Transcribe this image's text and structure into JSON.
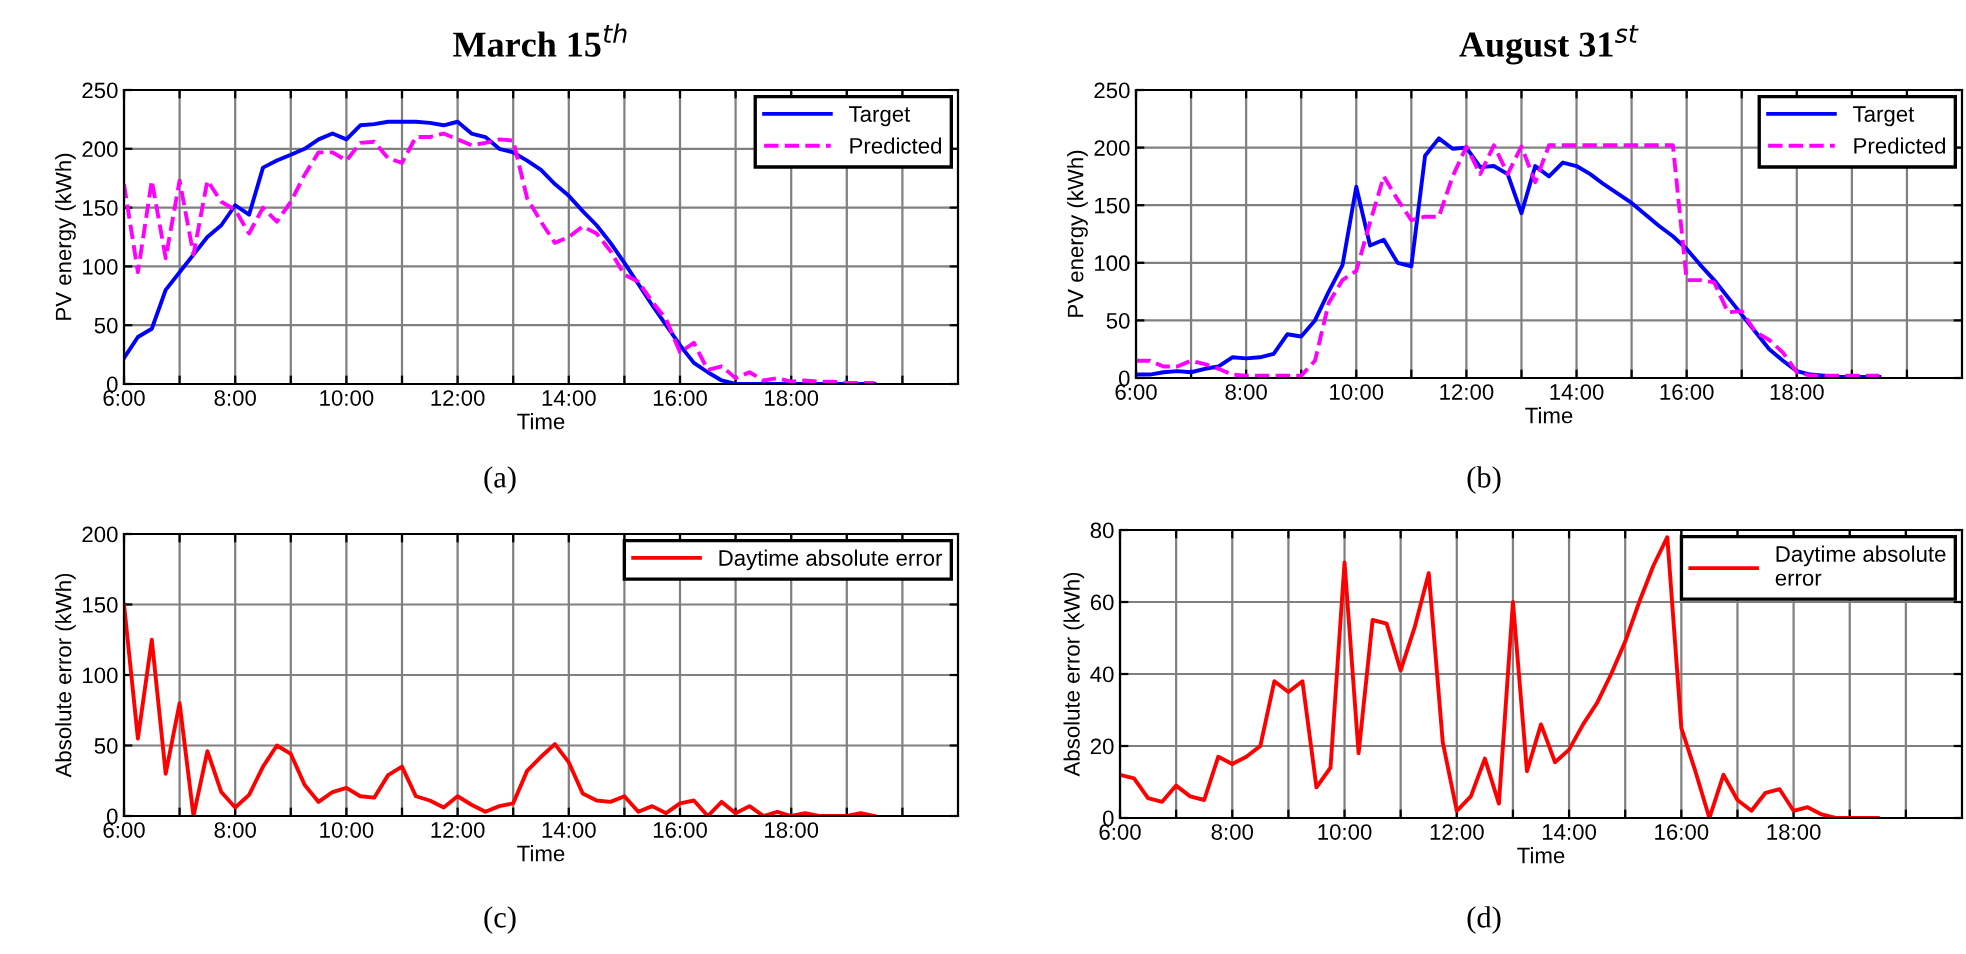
{
  "chart_data": [
    {
      "type": "line",
      "title": "March 15$^{th}$",
      "xlabel": "Time",
      "ylabel": "PV energy (kWh)",
      "annotations": [
        "(a)"
      ],
      "grid": true,
      "legend": "top right",
      "xlim": [
        6,
        21
      ],
      "xticks": [
        {
          "value": 6,
          "label": "6:00"
        },
        {
          "value": 7,
          "label": null
        },
        {
          "value": 8,
          "label": "8:00"
        },
        {
          "value": 9,
          "label": null
        },
        {
          "value": 10,
          "label": "10:00"
        },
        {
          "value": 11,
          "label": null
        },
        {
          "value": 12,
          "label": "12:00"
        },
        {
          "value": 13,
          "label": null
        },
        {
          "value": 14,
          "label": "14:00"
        },
        {
          "value": 15,
          "label": null
        },
        {
          "value": 16,
          "label": "16:00"
        },
        {
          "value": 17,
          "label": null
        },
        {
          "value": 18,
          "label": "18:00"
        },
        {
          "value": 19,
          "label": null
        },
        {
          "value": 20,
          "label": null
        }
      ],
      "ylim": [
        0,
        250
      ],
      "yticks": [
        0,
        50,
        100,
        150,
        200,
        250
      ],
      "x": [
        6,
        6.25,
        6.5,
        6.75,
        7,
        7.25,
        7.5,
        7.75,
        8,
        8.25,
        8.5,
        8.75,
        9,
        9.25,
        9.5,
        9.75,
        10,
        10.25,
        10.5,
        10.75,
        11,
        11.25,
        11.5,
        11.75,
        12,
        12.25,
        12.5,
        12.75,
        13,
        13.25,
        13.5,
        13.75,
        14,
        14.25,
        14.5,
        14.75,
        15,
        15.25,
        15.5,
        15.75,
        16,
        16.25,
        16.5,
        16.75,
        17,
        17.25,
        17.5,
        17.75,
        18,
        18.25,
        18.5,
        18.75,
        19,
        19.25,
        19.5
      ],
      "series": [
        {
          "name": "Target",
          "color": "#0000ff",
          "line_style": "solid",
          "values": [
            22,
            40,
            47,
            80,
            95,
            110,
            125,
            135,
            152,
            144,
            184,
            190,
            195,
            200,
            208,
            213,
            208,
            220,
            221,
            223,
            223,
            223,
            222,
            220,
            223,
            213,
            210,
            200,
            197,
            190,
            182,
            170,
            160,
            147,
            135,
            120,
            103,
            85,
            67,
            50,
            33,
            18,
            10,
            3,
            0,
            0,
            0,
            0,
            0,
            0,
            0,
            0,
            0,
            0,
            0
          ]
        },
        {
          "name": "Predicted",
          "color": "#ff00ff",
          "line_style": "dashed",
          "values": [
            170,
            95,
            173,
            107,
            173,
            110,
            173,
            155,
            148,
            128,
            150,
            138,
            155,
            178,
            197,
            197,
            190,
            205,
            206,
            192,
            188,
            210,
            210,
            213,
            208,
            203,
            205,
            208,
            207,
            158,
            138,
            120,
            125,
            134,
            128,
            113,
            93,
            87,
            70,
            55,
            27,
            35,
            12,
            15,
            5,
            10,
            3,
            5,
            2,
            3,
            2,
            2,
            1,
            1,
            1
          ]
        }
      ]
    },
    {
      "type": "line",
      "title": "August 31$^{st}$",
      "xlabel": "Time",
      "ylabel": "PV energy (kWh)",
      "annotations": [
        "(b)"
      ],
      "grid": true,
      "legend": "top right",
      "xlim": [
        6,
        21
      ],
      "xticks": [
        {
          "value": 6,
          "label": "6:00"
        },
        {
          "value": 7,
          "label": null
        },
        {
          "value": 8,
          "label": "8:00"
        },
        {
          "value": 9,
          "label": null
        },
        {
          "value": 10,
          "label": "10:00"
        },
        {
          "value": 11,
          "label": null
        },
        {
          "value": 12,
          "label": "12:00"
        },
        {
          "value": 13,
          "label": null
        },
        {
          "value": 14,
          "label": "14:00"
        },
        {
          "value": 15,
          "label": null
        },
        {
          "value": 16,
          "label": "16:00"
        },
        {
          "value": 17,
          "label": null
        },
        {
          "value": 18,
          "label": "18:00"
        },
        {
          "value": 19,
          "label": null
        },
        {
          "value": 20,
          "label": null
        }
      ],
      "ylim": [
        0,
        250
      ],
      "yticks": [
        0,
        50,
        100,
        150,
        200,
        250
      ],
      "x": [
        6,
        6.25,
        6.5,
        6.75,
        7,
        7.25,
        7.5,
        7.75,
        8,
        8.25,
        8.5,
        8.75,
        9,
        9.25,
        9.5,
        9.75,
        10,
        10.25,
        10.5,
        10.75,
        11,
        11.25,
        11.5,
        11.75,
        12,
        12.25,
        12.5,
        12.75,
        13,
        13.25,
        13.5,
        13.75,
        14,
        14.25,
        14.5,
        14.75,
        15,
        15.25,
        15.5,
        15.75,
        16,
        16.25,
        16.5,
        16.75,
        17,
        17.25,
        17.5,
        17.75,
        18,
        18.25,
        18.5,
        18.75,
        19,
        19.25,
        19.5
      ],
      "series": [
        {
          "name": "Target",
          "color": "#0000ff",
          "line_style": "solid",
          "values": [
            3,
            3,
            5,
            6,
            5,
            8,
            10,
            18,
            17,
            18,
            21,
            38,
            36,
            50,
            75,
            98,
            166,
            115,
            120,
            100,
            97,
            193,
            208,
            199,
            200,
            183,
            184,
            177,
            143,
            184,
            175,
            187,
            184,
            177,
            168,
            160,
            152,
            142,
            132,
            123,
            112,
            98,
            85,
            70,
            55,
            40,
            25,
            15,
            6,
            3,
            2,
            1,
            1,
            1,
            1
          ]
        },
        {
          "name": "Predicted",
          "color": "#ff00ff",
          "line_style": "dashed",
          "values": [
            15,
            15,
            10,
            10,
            15,
            12,
            8,
            3,
            2,
            2,
            2,
            2,
            2,
            15,
            65,
            85,
            93,
            135,
            175,
            155,
            137,
            140,
            140,
            175,
            201,
            177,
            202,
            177,
            201,
            170,
            202,
            202,
            202,
            202,
            202,
            202,
            202,
            202,
            202,
            202,
            85,
            85,
            83,
            57,
            58,
            40,
            33,
            22,
            5,
            2,
            2,
            2,
            2,
            2,
            2
          ]
        }
      ]
    },
    {
      "type": "line",
      "xlabel": "Time",
      "ylabel": "Absolute error (kWh)",
      "annotations": [
        "(c)"
      ],
      "grid": true,
      "legend": "top right",
      "xlim": [
        6,
        21
      ],
      "xticks": [
        {
          "value": 6,
          "label": "6:00"
        },
        {
          "value": 7,
          "label": null
        },
        {
          "value": 8,
          "label": "8:00"
        },
        {
          "value": 9,
          "label": null
        },
        {
          "value": 10,
          "label": "10:00"
        },
        {
          "value": 11,
          "label": null
        },
        {
          "value": 12,
          "label": "12:00"
        },
        {
          "value": 13,
          "label": null
        },
        {
          "value": 14,
          "label": "14:00"
        },
        {
          "value": 15,
          "label": null
        },
        {
          "value": 16,
          "label": "16:00"
        },
        {
          "value": 17,
          "label": null
        },
        {
          "value": 18,
          "label": "18:00"
        },
        {
          "value": 19,
          "label": null
        },
        {
          "value": 20,
          "label": null
        }
      ],
      "ylim": [
        0,
        200
      ],
      "yticks": [
        0,
        50,
        100,
        150,
        200
      ],
      "x": [
        6,
        6.25,
        6.5,
        6.75,
        7,
        7.25,
        7.5,
        7.75,
        8,
        8.25,
        8.5,
        8.75,
        9,
        9.25,
        9.5,
        9.75,
        10,
        10.25,
        10.5,
        10.75,
        11,
        11.25,
        11.5,
        11.75,
        12,
        12.25,
        12.5,
        12.75,
        13,
        13.25,
        13.5,
        13.75,
        14,
        14.25,
        14.5,
        14.75,
        15,
        15.25,
        15.5,
        15.75,
        16,
        16.25,
        16.5,
        16.75,
        17,
        17.25,
        17.5,
        17.75,
        18,
        18.25,
        18.5,
        18.75,
        19,
        19.25,
        19.5
      ],
      "series": [
        {
          "name": "Daytime absolute error",
          "color": "#ff0000",
          "line_style": "solid",
          "values": [
            150,
            55,
            125,
            30,
            80,
            0,
            46,
            17,
            6,
            15,
            35,
            50,
            44,
            22,
            10,
            17,
            20,
            14,
            13,
            29,
            35,
            14,
            11,
            6,
            14,
            8,
            3,
            7,
            9,
            32,
            42,
            51,
            38,
            16,
            11,
            10,
            14,
            3,
            7,
            2,
            9,
            11,
            0,
            10,
            2,
            7,
            0,
            3,
            0,
            2,
            0,
            0,
            0,
            2,
            0
          ]
        }
      ]
    },
    {
      "type": "line",
      "xlabel": "Time",
      "ylabel": "Absolute error (kWh)",
      "annotations": [
        "(d)"
      ],
      "grid": true,
      "legend": "top right",
      "xlim": [
        6,
        21
      ],
      "xticks": [
        {
          "value": 6,
          "label": "6:00"
        },
        {
          "value": 7,
          "label": null
        },
        {
          "value": 8,
          "label": "8:00"
        },
        {
          "value": 9,
          "label": null
        },
        {
          "value": 10,
          "label": "10:00"
        },
        {
          "value": 11,
          "label": null
        },
        {
          "value": 12,
          "label": "12:00"
        },
        {
          "value": 13,
          "label": null
        },
        {
          "value": 14,
          "label": "14:00"
        },
        {
          "value": 15,
          "label": null
        },
        {
          "value": 16,
          "label": "16:00"
        },
        {
          "value": 17,
          "label": null
        },
        {
          "value": 18,
          "label": "18:00"
        },
        {
          "value": 19,
          "label": null
        },
        {
          "value": 20,
          "label": null
        }
      ],
      "ylim": [
        0,
        80
      ],
      "yticks": [
        0,
        20,
        40,
        60,
        80
      ],
      "x": [
        6,
        6.25,
        6.5,
        6.75,
        7,
        7.25,
        7.5,
        7.75,
        8,
        8.25,
        8.5,
        8.75,
        9,
        9.25,
        9.5,
        9.75,
        10,
        10.25,
        10.5,
        10.75,
        11,
        11.25,
        11.5,
        11.75,
        12,
        12.25,
        12.5,
        12.75,
        13,
        13.25,
        13.5,
        13.75,
        14,
        14.25,
        14.5,
        14.75,
        15,
        15.25,
        15.5,
        15.75,
        16,
        16.25,
        16.5,
        16.75,
        17,
        17.25,
        17.5,
        17.75,
        18,
        18.25,
        18.5,
        18.75,
        19,
        19.25,
        19.5
      ],
      "series": [
        {
          "name": "Daytime absolute\nerror",
          "color": "#ff0000",
          "line_style": "solid",
          "values": [
            12,
            11,
            5.5,
            4.5,
            9,
            6,
            5,
            17,
            15,
            17,
            20,
            38,
            35,
            38,
            8.5,
            14,
            71,
            18,
            55,
            54,
            41,
            53,
            68,
            21,
            2,
            6,
            16.5,
            4,
            60,
            13,
            26,
            15.5,
            19,
            26,
            32,
            40,
            49,
            60,
            70,
            78,
            25,
            13,
            0,
            12,
            5,
            2,
            7,
            8,
            2,
            3,
            1,
            0,
            0,
            0,
            0
          ]
        }
      ]
    }
  ]
}
